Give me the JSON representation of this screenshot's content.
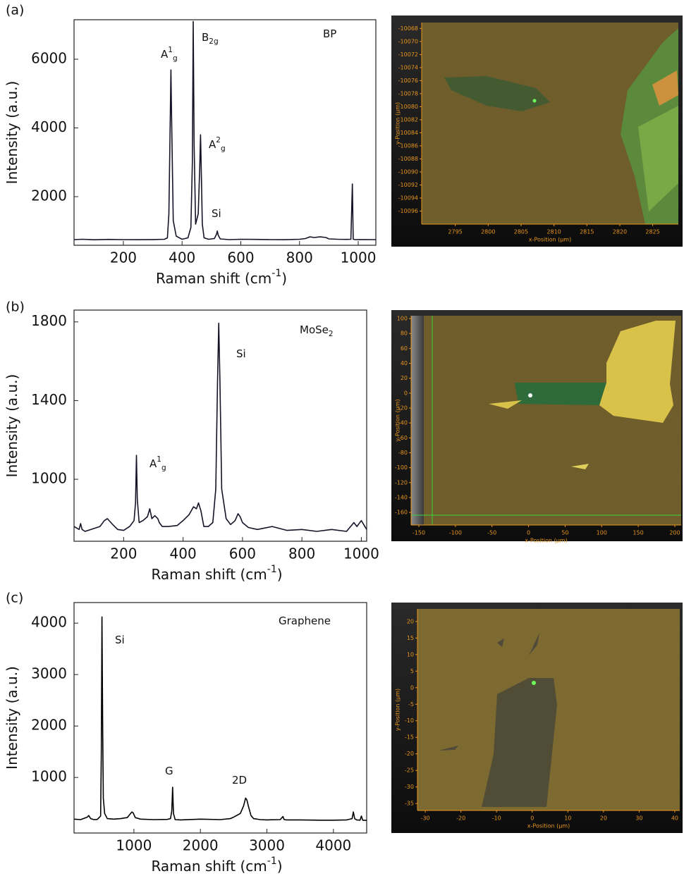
{
  "chart_data": [
    {
      "type": "line",
      "panel": "(a)",
      "xlabel": [
        {
          "t": "Raman shift (cm"
        },
        {
          "t": "-1",
          "sup": true
        },
        {
          "t": ")"
        }
      ],
      "ylabel": [
        {
          "t": "Intensity (a.u.)"
        }
      ],
      "xlim": [
        32,
        1060
      ],
      "xticks": [
        200,
        400,
        600,
        800,
        1000
      ],
      "ylim": [
        585,
        7150
      ],
      "yticks": [
        2000,
        4000,
        6000
      ],
      "color": "#141428",
      "annotations": [
        [
          {
            "t": "A"
          },
          {
            "t": "1",
            "sup": true
          },
          {
            "t": "g",
            "sub": true
          }
        ],
        [
          {
            "t": "B"
          },
          {
            "t": "2g",
            "sub": true
          }
        ],
        [
          {
            "t": "A"
          },
          {
            "t": "2",
            "sup": true
          },
          {
            "t": "g",
            "sub": true
          }
        ],
        [
          {
            "t": "Si"
          }
        ],
        [
          {
            "t": "BP"
          }
        ]
      ],
      "x": [
        32,
        60,
        100,
        150,
        200,
        250,
        300,
        340,
        350,
        355,
        360,
        362,
        364,
        370,
        380,
        400,
        420,
        430,
        435,
        438,
        441,
        446,
        455,
        460,
        463,
        466,
        469,
        475,
        490,
        510,
        517,
        520,
        523,
        530,
        560,
        600,
        650,
        700,
        750,
        800,
        820,
        835,
        850,
        870,
        890,
        900,
        930,
        960,
        975,
        980,
        983,
        990,
        1020,
        1060
      ],
      "y": [
        750,
        760,
        745,
        755,
        750,
        748,
        752,
        760,
        800,
        1500,
        4500,
        5690,
        4500,
        1300,
        850,
        760,
        800,
        1100,
        3000,
        7100,
        3500,
        1200,
        1500,
        2800,
        3800,
        2500,
        1200,
        800,
        760,
        780,
        900,
        1000,
        880,
        770,
        750,
        760,
        755,
        750,
        748,
        760,
        780,
        830,
        810,
        830,
        810,
        770,
        760,
        755,
        760,
        2370,
        760,
        750,
        752,
        750
      ]
    },
    {
      "type": "image",
      "xlabel": "x-Position (µm)",
      "ylabel": "y-Position (µm)",
      "xlim": [
        2789.9,
        2828.9
      ],
      "xticks": [
        2795,
        2800,
        2805,
        2810,
        2815,
        2820,
        2825
      ],
      "ylim": [
        -10098,
        -10067.1
      ],
      "yticks": [
        -10068,
        -10070,
        -10072,
        -10074,
        -10076,
        -10078,
        -10080,
        -10082,
        -10084,
        -10086,
        -10088,
        -10090,
        -10092,
        -10094,
        -10096
      ]
    },
    {
      "type": "line",
      "panel": "(b)",
      "xlabel": [
        {
          "t": "Raman shift (cm"
        },
        {
          "t": "-1",
          "sup": true
        },
        {
          "t": ")"
        }
      ],
      "ylabel": [
        {
          "t": "Intensity (a.u.)"
        }
      ],
      "xlim": [
        33,
        1018
      ],
      "xticks": [
        200,
        400,
        600,
        800,
        1000
      ],
      "ylim": [
        685,
        1860
      ],
      "yticks": [
        1000,
        1400,
        1800
      ],
      "color": "#141428",
      "annotations": [
        [
          {
            "t": "A"
          },
          {
            "t": "1",
            "sup": true
          },
          {
            "t": "g",
            "sub": true
          }
        ],
        [
          {
            "t": "Si"
          }
        ],
        [
          {
            "t": "MoSe"
          },
          {
            "t": "2",
            "sub": true
          }
        ]
      ],
      "x": [
        33,
        50,
        55,
        60,
        70,
        90,
        120,
        135,
        145,
        160,
        180,
        200,
        220,
        235,
        240,
        243,
        246,
        252,
        265,
        280,
        288,
        295,
        305,
        315,
        320,
        330,
        350,
        380,
        400,
        420,
        435,
        445,
        452,
        460,
        470,
        485,
        500,
        510,
        516,
        520,
        524,
        530,
        545,
        560,
        575,
        585,
        592,
        600,
        620,
        650,
        700,
        750,
        800,
        850,
        900,
        950,
        975,
        985,
        1000,
        1018
      ],
      "y": [
        760,
        745,
        775,
        745,
        735,
        745,
        760,
        790,
        800,
        775,
        745,
        740,
        760,
        790,
        880,
        1122,
        900,
        780,
        790,
        810,
        850,
        800,
        815,
        800,
        780,
        760,
        760,
        765,
        790,
        820,
        860,
        850,
        880,
        840,
        760,
        760,
        780,
        950,
        1500,
        1793,
        1500,
        950,
        800,
        770,
        790,
        825,
        810,
        780,
        755,
        745,
        760,
        740,
        745,
        735,
        745,
        735,
        780,
        760,
        790,
        745
      ]
    },
    {
      "type": "image",
      "xlabel": "x-Position (µm)",
      "ylabel": "y-Position (µm)",
      "xlim": [
        -160.6,
        208.7
      ],
      "xticks": [
        -150,
        -100,
        -50,
        0,
        50,
        100,
        150,
        200
      ],
      "ylim": [
        -176.9,
        103.8
      ],
      "yticks": [
        100,
        80,
        60,
        40,
        20,
        0,
        -20,
        -40,
        -60,
        -80,
        -100,
        -120,
        -140,
        -160
      ]
    },
    {
      "type": "line",
      "panel": "(c)",
      "xlabel": [
        {
          "t": "Raman shift (cm"
        },
        {
          "t": "-1",
          "sup": true
        },
        {
          "t": ")"
        }
      ],
      "ylabel": [
        {
          "t": "Intensity (a.u.)"
        }
      ],
      "xlim": [
        100,
        4500
      ],
      "xticks": [
        1000,
        2000,
        3000,
        4000
      ],
      "ylim": [
        -80,
        4400
      ],
      "yticks": [
        1000,
        2000,
        3000,
        4000
      ],
      "color": "#000000",
      "annotations": [
        [
          {
            "t": "Si"
          }
        ],
        [
          {
            "t": "G"
          }
        ],
        [
          {
            "t": "2D"
          }
        ],
        [
          {
            "t": "Graphene"
          }
        ]
      ],
      "x": [
        100,
        200,
        300,
        320,
        350,
        400,
        450,
        500,
        510,
        520,
        530,
        540,
        560,
        600,
        700,
        800,
        900,
        950,
        970,
        990,
        1020,
        1100,
        1300,
        1500,
        1550,
        1570,
        1582,
        1595,
        1620,
        1700,
        2000,
        2300,
        2450,
        2500,
        2600,
        2650,
        2680,
        2700,
        2720,
        2760,
        2800,
        2900,
        3000,
        3200,
        3240,
        3260,
        3300,
        3500,
        3800,
        4000,
        4200,
        4280,
        4300,
        4320,
        4350,
        4400,
        4420,
        4440,
        4500
      ],
      "y": [
        190,
        180,
        230,
        260,
        200,
        180,
        185,
        250,
        1500,
        4120,
        2000,
        600,
        300,
        200,
        190,
        200,
        220,
        300,
        330,
        310,
        220,
        190,
        180,
        185,
        200,
        350,
        810,
        300,
        180,
        175,
        190,
        180,
        200,
        230,
        300,
        450,
        600,
        560,
        450,
        260,
        200,
        180,
        175,
        180,
        240,
        180,
        175,
        175,
        170,
        170,
        175,
        200,
        330,
        200,
        175,
        170,
        250,
        170,
        165
      ]
    },
    {
      "type": "image",
      "xlabel": "x-Position (µm)",
      "ylabel": "y-Position (µm)",
      "xlim": [
        -32.2,
        41.4
      ],
      "xticks": [
        -30,
        -20,
        -10,
        0,
        10,
        20,
        30,
        40
      ],
      "ylim": [
        -37.1,
        23.8
      ],
      "yticks": [
        20,
        15,
        10,
        5,
        0,
        -5,
        -10,
        -15,
        -20,
        -25,
        -30,
        -35
      ]
    }
  ]
}
